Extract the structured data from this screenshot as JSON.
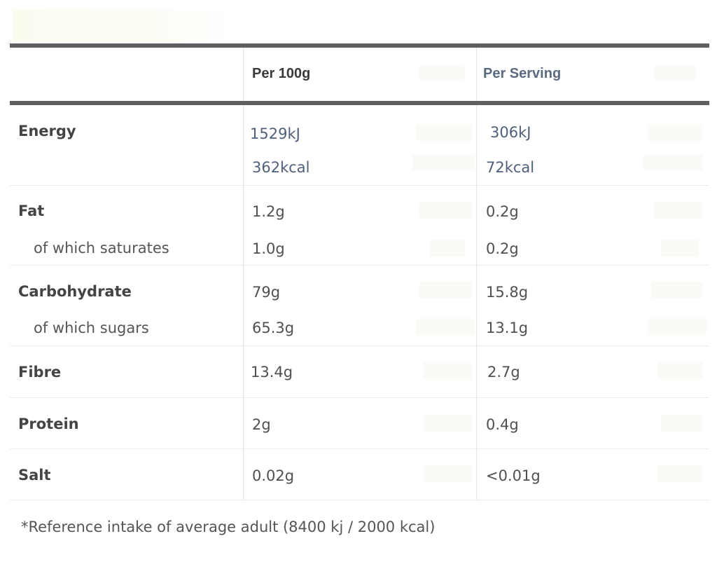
{
  "table": {
    "headers": {
      "nutrient": "",
      "per_100g": "Per 100g",
      "per_serving": "Per Serving"
    },
    "rows": [
      {
        "label": "Energy",
        "per_100g": "1529kJ",
        "per_serving": "306kJ"
      },
      {
        "label": "",
        "per_100g": "362kcal",
        "per_serving": "72kcal"
      },
      {
        "label": "Fat",
        "per_100g": "1.2g",
        "per_serving": "0.2g"
      },
      {
        "label": "of which saturates",
        "per_100g": "1.0g",
        "per_serving": "0.2g"
      },
      {
        "label": "Carbohydrate",
        "per_100g": "79g",
        "per_serving": "15.8g"
      },
      {
        "label": "of which sugars",
        "per_100g": "65.3g",
        "per_serving": "13.1g"
      },
      {
        "label": "Fibre",
        "per_100g": "13.4g",
        "per_serving": "2.7g"
      },
      {
        "label": "Protein",
        "per_100g": "2g",
        "per_serving": "0.4g"
      },
      {
        "label": "Salt",
        "per_100g": "0.02g",
        "per_serving": "<0.01g"
      }
    ]
  },
  "footnote": "*Reference intake of average adult (8400 kj / 2000 kcal)",
  "colors": {
    "rule": "#5d5f61",
    "text": "#505050",
    "header_blue": "#5a6a80",
    "value_blue": "#4f607a"
  }
}
